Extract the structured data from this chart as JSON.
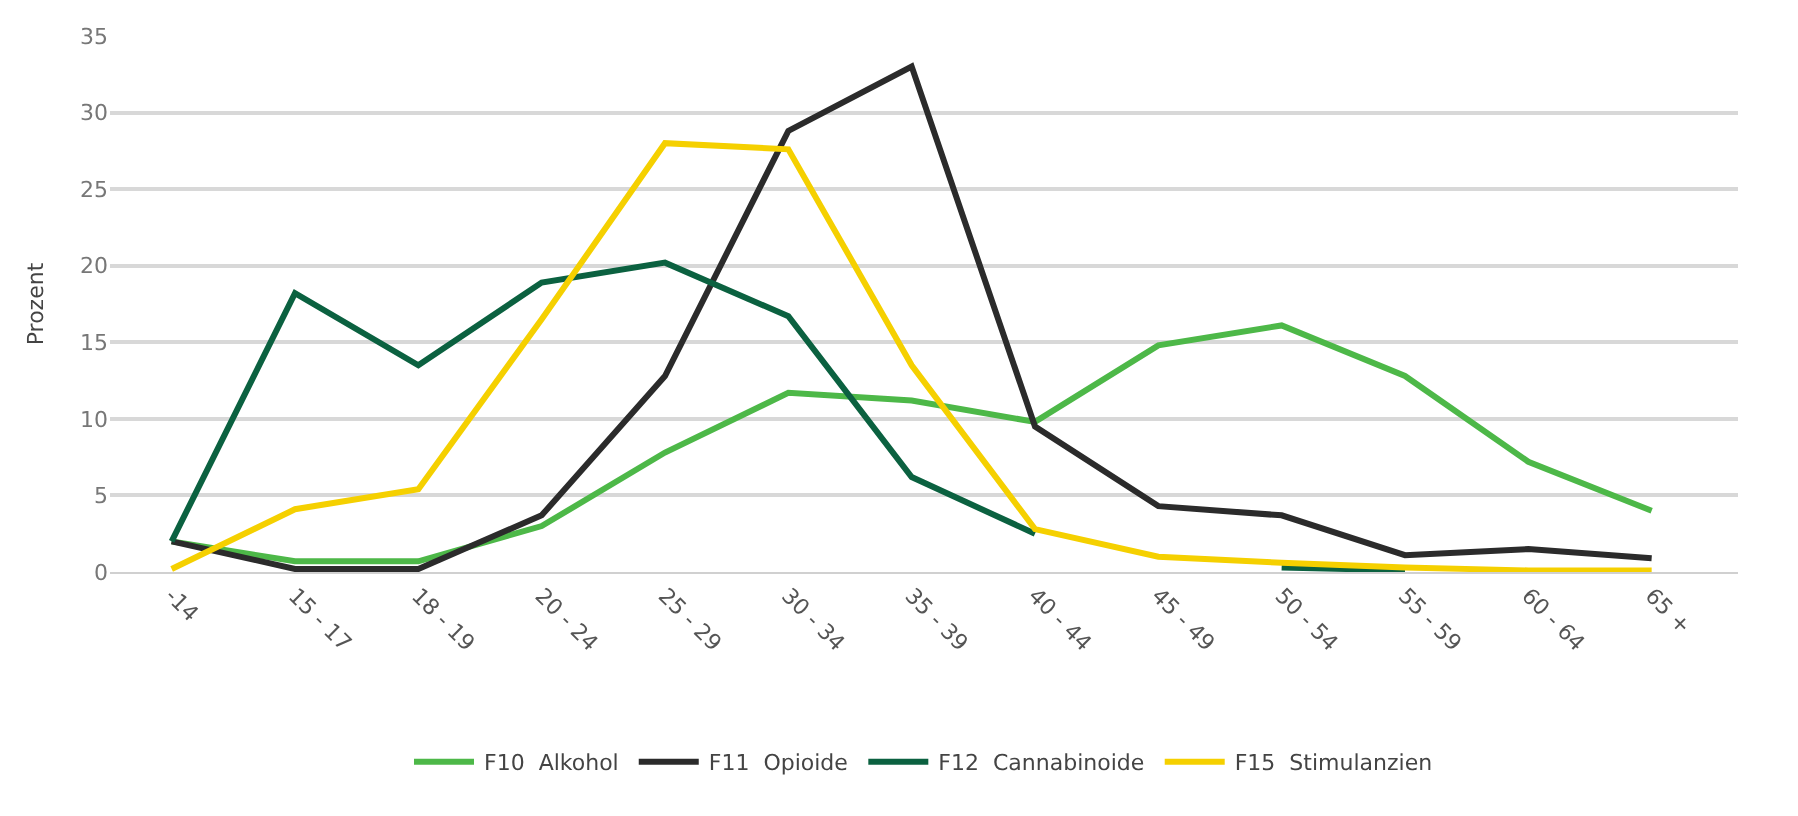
{
  "chart_data": {
    "type": "line",
    "ylabel": "Prozent",
    "categories": [
      "-14",
      "15 - 17",
      "18 - 19",
      "20 - 24",
      "25 - 29",
      "30 - 34",
      "35 - 39",
      "40 - 44",
      "45 - 49",
      "50 - 54",
      "55 - 59",
      "60 - 64",
      "65 +"
    ],
    "series": [
      {
        "name": "F10  Alkohol",
        "color": "#4db848",
        "values": [
          2.0,
          0.7,
          0.7,
          3.0,
          7.8,
          11.7,
          11.2,
          9.8,
          14.8,
          16.1,
          12.8,
          7.2,
          4.0
        ]
      },
      {
        "name": "F11  Opioide",
        "color": "#2b2b2b",
        "values": [
          2.0,
          0.2,
          0.2,
          3.7,
          12.8,
          28.8,
          33.0,
          9.5,
          4.3,
          3.7,
          1.1,
          1.5,
          0.9
        ]
      },
      {
        "name": "F12  Cannabinoide",
        "color": "#0b6140",
        "values": [
          2.0,
          18.2,
          13.5,
          18.9,
          20.2,
          16.7,
          6.2,
          2.5,
          null,
          0.3,
          0.1,
          null,
          null
        ]
      },
      {
        "name": "F15  Stimulanzien",
        "color": "#f5d000",
        "values": [
          0.2,
          4.1,
          5.4,
          16.5,
          28.0,
          27.6,
          13.5,
          2.8,
          1.0,
          0.6,
          0.3,
          0.1,
          0.1
        ]
      }
    ],
    "ylim": [
      0,
      35
    ],
    "yticks": [
      0,
      5,
      10,
      15,
      20,
      25,
      30,
      35
    ],
    "grid": "y",
    "legend": "bottom",
    "marker": "none",
    "line_style": "solid"
  }
}
